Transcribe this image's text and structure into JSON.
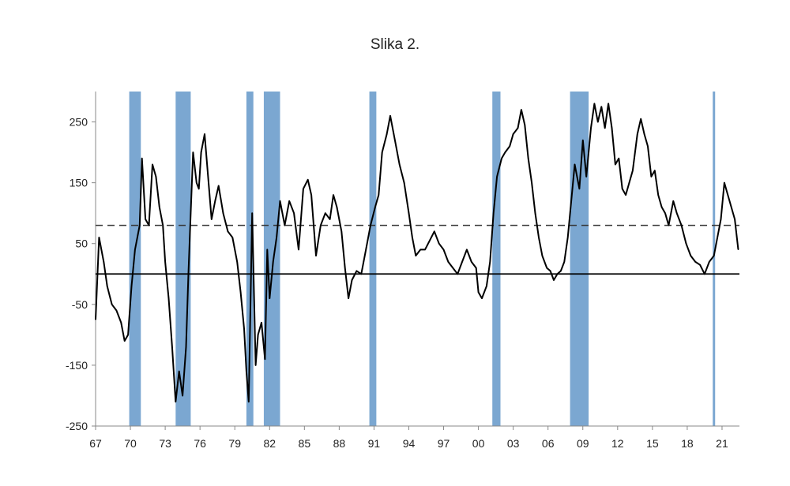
{
  "title": "Slika 2.",
  "chart_data": {
    "type": "line",
    "title": "Slika 2.",
    "xlabel": "",
    "ylabel": "",
    "x_range": [
      1967.0,
      2022.5
    ],
    "ylim": [
      -250,
      300
    ],
    "y_ticks": [
      250,
      150,
      50,
      -50,
      -150,
      -250
    ],
    "x_ticks": [
      "67",
      "70",
      "73",
      "76",
      "79",
      "82",
      "85",
      "88",
      "91",
      "94",
      "97",
      "00",
      "03",
      "06",
      "09",
      "12",
      "15",
      "18",
      "21"
    ],
    "grid": false,
    "reference_lines": [
      {
        "y": 0,
        "style": "solid"
      },
      {
        "y": 80,
        "style": "dashed"
      }
    ],
    "recession_bands": [
      [
        1969.9,
        1970.9
      ],
      [
        1973.9,
        1975.2
      ],
      [
        1980.0,
        1980.6
      ],
      [
        1981.5,
        1982.9
      ],
      [
        1990.6,
        1991.2
      ],
      [
        2001.2,
        2001.9
      ],
      [
        2007.9,
        2009.5
      ],
      [
        2020.2,
        2020.4
      ]
    ],
    "colors": {
      "line": "#000000",
      "band": "#7ba7d1",
      "zero_line": "#000000",
      "dashed_line": "#333333"
    },
    "series": [
      {
        "values": [
          [
            1967.0,
            -75
          ],
          [
            1967.3,
            60
          ],
          [
            1967.7,
            20
          ],
          [
            1968.0,
            -20
          ],
          [
            1968.4,
            -50
          ],
          [
            1968.8,
            -60
          ],
          [
            1969.2,
            -80
          ],
          [
            1969.5,
            -110
          ],
          [
            1969.8,
            -100
          ],
          [
            1970.1,
            -20
          ],
          [
            1970.4,
            40
          ],
          [
            1970.8,
            80
          ],
          [
            1971.0,
            190
          ],
          [
            1971.3,
            90
          ],
          [
            1971.6,
            80
          ],
          [
            1971.9,
            180
          ],
          [
            1972.2,
            160
          ],
          [
            1972.5,
            110
          ],
          [
            1972.8,
            80
          ],
          [
            1973.0,
            20
          ],
          [
            1973.3,
            -40
          ],
          [
            1973.6,
            -120
          ],
          [
            1973.9,
            -210
          ],
          [
            1974.2,
            -160
          ],
          [
            1974.5,
            -200
          ],
          [
            1974.8,
            -120
          ],
          [
            1975.0,
            0
          ],
          [
            1975.2,
            100
          ],
          [
            1975.4,
            200
          ],
          [
            1975.7,
            150
          ],
          [
            1975.9,
            140
          ],
          [
            1976.1,
            200
          ],
          [
            1976.4,
            230
          ],
          [
            1976.7,
            160
          ],
          [
            1977.0,
            90
          ],
          [
            1977.3,
            120
          ],
          [
            1977.6,
            145
          ],
          [
            1978.0,
            100
          ],
          [
            1978.4,
            70
          ],
          [
            1978.8,
            60
          ],
          [
            1979.2,
            20
          ],
          [
            1979.5,
            -30
          ],
          [
            1979.8,
            -90
          ],
          [
            1980.0,
            -160
          ],
          [
            1980.2,
            -210
          ],
          [
            1980.5,
            100
          ],
          [
            1980.8,
            -150
          ],
          [
            1981.0,
            -100
          ],
          [
            1981.3,
            -80
          ],
          [
            1981.6,
            -140
          ],
          [
            1981.8,
            40
          ],
          [
            1982.0,
            -40
          ],
          [
            1982.3,
            20
          ],
          [
            1982.6,
            60
          ],
          [
            1982.9,
            120
          ],
          [
            1983.3,
            80
          ],
          [
            1983.7,
            120
          ],
          [
            1984.1,
            100
          ],
          [
            1984.5,
            40
          ],
          [
            1984.9,
            140
          ],
          [
            1985.3,
            155
          ],
          [
            1985.6,
            130
          ],
          [
            1986.0,
            30
          ],
          [
            1986.4,
            80
          ],
          [
            1986.8,
            100
          ],
          [
            1987.2,
            90
          ],
          [
            1987.5,
            130
          ],
          [
            1987.8,
            110
          ],
          [
            1988.2,
            70
          ],
          [
            1988.5,
            10
          ],
          [
            1988.8,
            -40
          ],
          [
            1989.1,
            -10
          ],
          [
            1989.5,
            5
          ],
          [
            1989.9,
            0
          ],
          [
            1990.3,
            40
          ],
          [
            1990.7,
            80
          ],
          [
            1991.1,
            110
          ],
          [
            1991.4,
            130
          ],
          [
            1991.7,
            200
          ],
          [
            1992.1,
            230
          ],
          [
            1992.4,
            260
          ],
          [
            1992.8,
            220
          ],
          [
            1993.2,
            180
          ],
          [
            1993.6,
            150
          ],
          [
            1994.0,
            100
          ],
          [
            1994.3,
            60
          ],
          [
            1994.6,
            30
          ],
          [
            1995.0,
            40
          ],
          [
            1995.4,
            40
          ],
          [
            1995.8,
            55
          ],
          [
            1996.2,
            70
          ],
          [
            1996.6,
            50
          ],
          [
            1997.0,
            40
          ],
          [
            1997.4,
            20
          ],
          [
            1997.8,
            10
          ],
          [
            1998.2,
            0
          ],
          [
            1998.6,
            20
          ],
          [
            1999.0,
            40
          ],
          [
            1999.4,
            20
          ],
          [
            1999.8,
            10
          ],
          [
            2000.0,
            -30
          ],
          [
            2000.3,
            -40
          ],
          [
            2000.7,
            -20
          ],
          [
            2001.0,
            20
          ],
          [
            2001.3,
            100
          ],
          [
            2001.6,
            160
          ],
          [
            2002.0,
            190
          ],
          [
            2002.3,
            200
          ],
          [
            2002.7,
            210
          ],
          [
            2003.0,
            230
          ],
          [
            2003.4,
            240
          ],
          [
            2003.7,
            270
          ],
          [
            2004.0,
            245
          ],
          [
            2004.3,
            190
          ],
          [
            2004.6,
            150
          ],
          [
            2004.9,
            100
          ],
          [
            2005.2,
            60
          ],
          [
            2005.5,
            30
          ],
          [
            2005.9,
            10
          ],
          [
            2006.2,
            5
          ],
          [
            2006.5,
            -10
          ],
          [
            2006.8,
            0
          ],
          [
            2007.1,
            5
          ],
          [
            2007.4,
            20
          ],
          [
            2007.7,
            60
          ],
          [
            2008.0,
            120
          ],
          [
            2008.3,
            180
          ],
          [
            2008.7,
            140
          ],
          [
            2009.0,
            220
          ],
          [
            2009.3,
            160
          ],
          [
            2009.7,
            240
          ],
          [
            2010.0,
            280
          ],
          [
            2010.3,
            250
          ],
          [
            2010.6,
            275
          ],
          [
            2010.9,
            240
          ],
          [
            2011.2,
            280
          ],
          [
            2011.5,
            240
          ],
          [
            2011.8,
            180
          ],
          [
            2012.1,
            190
          ],
          [
            2012.4,
            140
          ],
          [
            2012.7,
            130
          ],
          [
            2013.0,
            150
          ],
          [
            2013.3,
            170
          ],
          [
            2013.7,
            230
          ],
          [
            2014.0,
            255
          ],
          [
            2014.3,
            230
          ],
          [
            2014.6,
            210
          ],
          [
            2014.9,
            160
          ],
          [
            2015.2,
            170
          ],
          [
            2015.5,
            130
          ],
          [
            2015.8,
            110
          ],
          [
            2016.1,
            100
          ],
          [
            2016.4,
            80
          ],
          [
            2016.8,
            120
          ],
          [
            2017.1,
            100
          ],
          [
            2017.5,
            80
          ],
          [
            2017.9,
            50
          ],
          [
            2018.3,
            30
          ],
          [
            2018.7,
            20
          ],
          [
            2019.1,
            15
          ],
          [
            2019.5,
            0
          ],
          [
            2019.9,
            20
          ],
          [
            2020.3,
            30
          ],
          [
            2020.6,
            60
          ],
          [
            2020.9,
            90
          ],
          [
            2021.2,
            150
          ],
          [
            2021.5,
            130
          ],
          [
            2021.8,
            110
          ],
          [
            2022.1,
            90
          ],
          [
            2022.4,
            40
          ]
        ]
      }
    ]
  }
}
